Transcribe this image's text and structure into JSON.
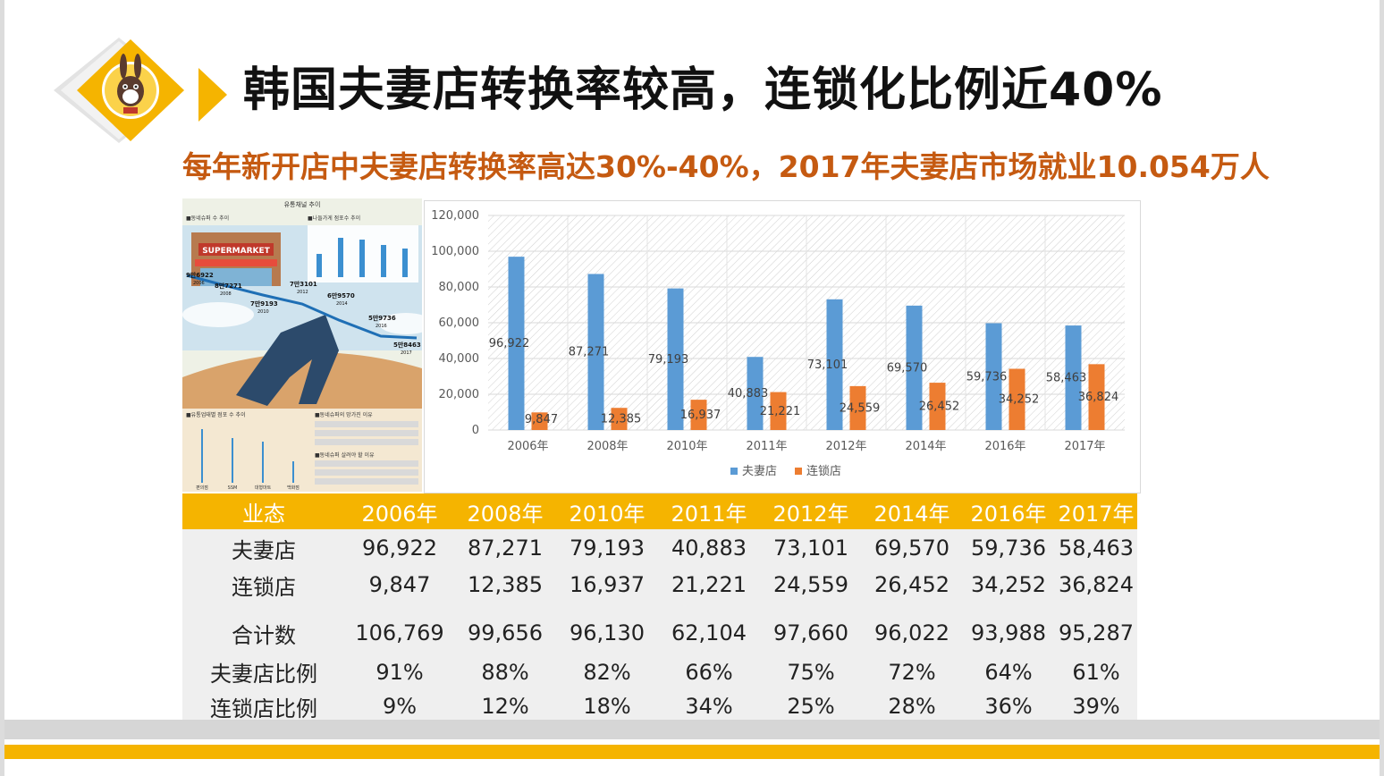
{
  "header": {
    "title": "韩国夫妻店转换率较高，连锁化比例近40%",
    "subtitle": "每年新开店中夫妻店转换率高达30%-40%，2017年夫妻店市场就业10.054万人"
  },
  "colors": {
    "accent": "#f5b400",
    "subtitle": "#c55a11",
    "series_family": "#5b9bd5",
    "series_chain": "#ed7d31"
  },
  "infographic": {
    "title": "유통채널 추이",
    "store_sign": "SUPERMARKET",
    "left_panel_title": "■동네슈퍼 수 추이",
    "right_panel_title": "■나들가게 점포수 추이",
    "trend_labels": [
      {
        "value": "9만6922",
        "year": "2006"
      },
      {
        "value": "8만7271",
        "year": "2008"
      },
      {
        "value": "7만9193",
        "year": "2010"
      },
      {
        "value": "7만3101",
        "year": "2012"
      },
      {
        "value": "6만9570",
        "year": "2014"
      },
      {
        "value": "5만9736",
        "year": "2016"
      },
      {
        "value": "5만8463",
        "year": "2017"
      }
    ],
    "bottom_left_title": "■유통업태별 점포 수 추이",
    "bottom_right_title": "■동네슈퍼의 망가진 이유",
    "bottom_right_title2": "■동네슈퍼 살려야 할 이유",
    "bottom_left_categories": [
      "편의점",
      "SSM",
      "대형마트",
      "백화점"
    ]
  },
  "chart_data": {
    "type": "bar",
    "categories": [
      "2006年",
      "2008年",
      "2010年",
      "2011年",
      "2012年",
      "2014年",
      "2016年",
      "2017年"
    ],
    "series": [
      {
        "name": "夫妻店",
        "values": [
          96922,
          87271,
          79193,
          40883,
          73101,
          69570,
          59736,
          58463
        ]
      },
      {
        "name": "连锁店",
        "values": [
          9847,
          12385,
          16937,
          21221,
          24559,
          26452,
          34252,
          36824
        ]
      }
    ],
    "data_labels": {
      "夫妻店": [
        "96,922",
        "87,271",
        "79,193",
        "40,883",
        "73,101",
        "69,570",
        "59,736",
        "58,463"
      ],
      "连锁店": [
        "9,847",
        "12,385",
        "16,937",
        "21,221",
        "24,559",
        "26,452",
        "34,252",
        "36,824"
      ]
    },
    "yticks": [
      "0",
      "20,000",
      "40,000",
      "60,000",
      "80,000",
      "100,000",
      "120,000"
    ],
    "ylim": [
      0,
      120000
    ],
    "legend": "bottom",
    "grid": true
  },
  "table": {
    "headers": [
      "业态",
      "2006年",
      "2008年",
      "2010年",
      "2011年",
      "2012年",
      "2014年",
      "2016年",
      "2017年"
    ],
    "rows": [
      [
        "夫妻店",
        "96,922",
        "87,271",
        "79,193",
        "40,883",
        "73,101",
        "69,570",
        "59,736",
        "58,463"
      ],
      [
        "连锁店",
        "9,847",
        "12,385",
        "16,937",
        "21,221",
        "24,559",
        "26,452",
        "34,252",
        "36,824"
      ],
      [
        "合计数",
        "106,769",
        "99,656",
        "96,130",
        "62,104",
        "97,660",
        "96,022",
        "93,988",
        "95,287"
      ],
      [
        "夫妻店比例",
        "91%",
        "88%",
        "82%",
        "66%",
        "75%",
        "72%",
        "64%",
        "61%"
      ],
      [
        "连锁店比例",
        "9%",
        "12%",
        "18%",
        "34%",
        "25%",
        "28%",
        "36%",
        "39%"
      ]
    ]
  }
}
